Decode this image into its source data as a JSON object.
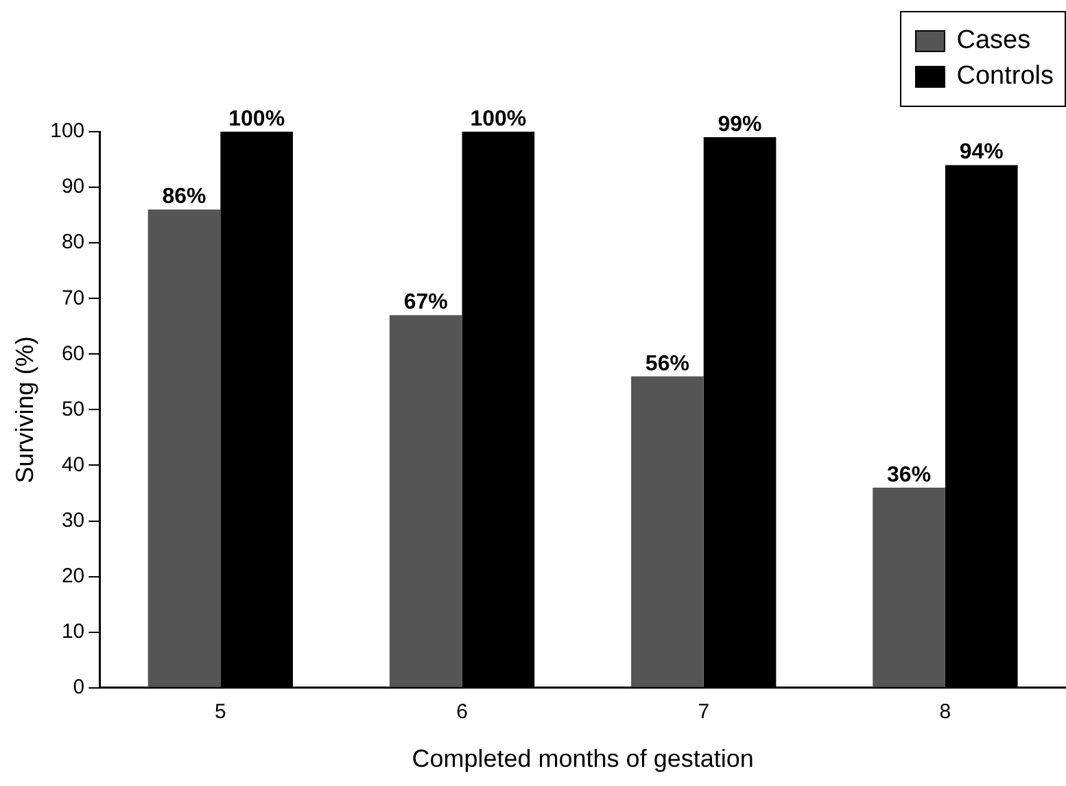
{
  "chart_data": {
    "type": "bar",
    "xlabel": "Completed months of gestation",
    "ylabel": "Surviving (%)",
    "categories": [
      "5",
      "6",
      "7",
      "8"
    ],
    "series": [
      {
        "name": "Cases",
        "color": "#555555",
        "values": [
          86,
          67,
          56,
          36
        ],
        "value_labels": [
          "86%",
          "67%",
          "56%",
          "36%"
        ]
      },
      {
        "name": "Controls",
        "color": "#000000",
        "values": [
          100,
          100,
          99,
          94
        ],
        "value_labels": [
          "100%",
          "100%",
          "99%",
          "94%"
        ]
      }
    ],
    "ylim": [
      0,
      100
    ],
    "yticks": [
      0,
      10,
      20,
      30,
      40,
      50,
      60,
      70,
      80,
      90,
      100
    ],
    "grid": false,
    "legend": "top right"
  }
}
